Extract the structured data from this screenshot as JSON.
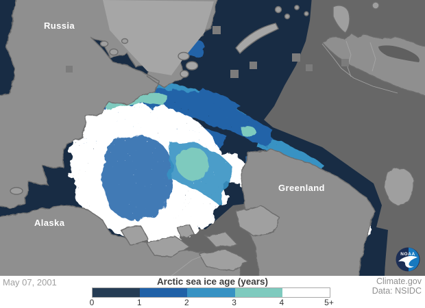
{
  "map": {
    "labels": [
      {
        "text": "Russia"
      },
      {
        "text": "Alaska"
      },
      {
        "text": "Greenland"
      }
    ],
    "noaa_logo_text": "NOAA",
    "colors": {
      "land": "#8f8f8f",
      "land_light": "#a6a6a6",
      "island_light": "#9f9f9f",
      "coast_outline": "#6d6d6d",
      "open_ocean": "#676767",
      "ice_age_0_1": "#182c44",
      "ice_age_1_2": "#2263a8",
      "ice_age_2_3": "#3792c3",
      "ice_age_3_4": "#7ecabe",
      "ice_age_4_plus": "#ffffff",
      "noaa_dark_blue": "#1c2e55",
      "noaa_light_blue": "#1879bf"
    }
  },
  "footer": {
    "date": "May 07, 2001",
    "legend": {
      "title": "Arctic sea ice age (years)",
      "ticks": [
        "0",
        "1",
        "2",
        "3",
        "4",
        "5+"
      ],
      "colors": [
        "#253c54",
        "#2061a7",
        "#3792c3",
        "#7ecabe",
        "#ffffff"
      ]
    },
    "attribution": {
      "line1": "Climate.gov",
      "line2": "Data: NSIDC"
    }
  }
}
